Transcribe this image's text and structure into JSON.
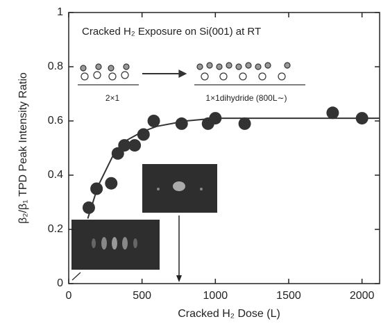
{
  "chart_data": {
    "type": "scatter",
    "annotations": [
      "Cracked H₂ Exposure on Si(001) at RT",
      "2×1",
      "1×1dihydride (800L∼)"
    ],
    "xlabel": "Cracked H₂ Dose (L)",
    "ylabel": "β₂/β₁ TPD Peak Intensity Ratio",
    "xlim": [
      0,
      2120
    ],
    "ylim": [
      0,
      1
    ],
    "xticks": [
      0,
      500,
      1000,
      1500,
      2000
    ],
    "yticks": [
      0,
      0.2,
      0.4,
      0.6,
      0.8,
      1
    ],
    "series": [
      {
        "style": "markers",
        "color": "#333333",
        "x": [
          137,
          190,
          290,
          335,
          380,
          450,
          510,
          580,
          770,
          950,
          1000,
          1200,
          1800,
          2000
        ],
        "values": [
          0.28,
          0.35,
          0.37,
          0.48,
          0.51,
          0.51,
          0.55,
          0.6,
          0.59,
          0.59,
          0.61,
          0.59,
          0.63,
          0.61
        ]
      },
      {
        "style": "line",
        "color": "#333333",
        "x": [
          130,
          200,
          300,
          400,
          500,
          600,
          800,
          1000,
          1500,
          2000,
          2120
        ],
        "values": [
          0.24,
          0.36,
          0.47,
          0.53,
          0.56,
          0.58,
          0.6,
          0.61,
          0.61,
          0.61,
          0.61
        ]
      }
    ]
  }
}
